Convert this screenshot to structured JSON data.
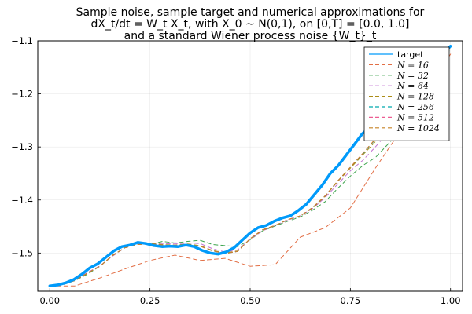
{
  "chart_data": {
    "type": "line",
    "title_lines": [
      "Sample noise, sample target and numerical approximations for",
      "dX_t/dt = W_t X_t, with X_0 ~ N(0,1), on [0,T] = [0.0, 1.0]",
      "and a standard Wiener process noise {W_t}_t"
    ],
    "xlabel": "",
    "ylabel": "",
    "xlim": [
      -0.03,
      1.03
    ],
    "ylim": [
      -1.572,
      -1.1
    ],
    "x_ticks": [
      0.0,
      0.25,
      0.5,
      0.75,
      1.0
    ],
    "x_tick_labels": [
      "0.00",
      "0.25",
      "0.50",
      "0.75",
      "1.00"
    ],
    "y_ticks": [
      -1.5,
      -1.4,
      -1.3,
      -1.2,
      -1.1
    ],
    "y_tick_labels": [
      "−1.5",
      "−1.4",
      "−1.3",
      "−1.2",
      "−1.1"
    ],
    "grid": true,
    "legend_position": "top-right",
    "series": [
      {
        "name": "target",
        "color": "#009AFA",
        "style": "solid",
        "x": [
          0.0,
          0.02,
          0.04,
          0.06,
          0.08,
          0.1,
          0.12,
          0.14,
          0.16,
          0.18,
          0.2,
          0.22,
          0.24,
          0.26,
          0.28,
          0.3,
          0.32,
          0.34,
          0.36,
          0.38,
          0.4,
          0.42,
          0.44,
          0.46,
          0.48,
          0.5,
          0.52,
          0.54,
          0.56,
          0.58,
          0.6,
          0.62,
          0.64,
          0.66,
          0.68,
          0.7,
          0.72,
          0.74,
          0.76,
          0.78,
          0.8,
          0.82,
          0.84,
          0.86,
          0.88,
          0.9,
          0.92,
          0.94,
          0.96,
          0.98,
          1.0
        ],
        "y": [
          -1.562,
          -1.56,
          -1.556,
          -1.55,
          -1.54,
          -1.528,
          -1.52,
          -1.508,
          -1.496,
          -1.488,
          -1.485,
          -1.48,
          -1.482,
          -1.486,
          -1.488,
          -1.487,
          -1.488,
          -1.485,
          -1.488,
          -1.495,
          -1.5,
          -1.502,
          -1.498,
          -1.49,
          -1.476,
          -1.462,
          -1.452,
          -1.448,
          -1.44,
          -1.434,
          -1.43,
          -1.42,
          -1.408,
          -1.39,
          -1.372,
          -1.35,
          -1.335,
          -1.315,
          -1.295,
          -1.275,
          -1.262,
          -1.245,
          -1.228,
          -1.212,
          -1.198,
          -1.185,
          -1.17,
          -1.155,
          -1.14,
          -1.125,
          -1.11
        ]
      },
      {
        "name": "N = 16",
        "color": "#E26F46",
        "style": "dashed",
        "x": [
          0.0,
          0.0625,
          0.125,
          0.1875,
          0.25,
          0.3125,
          0.375,
          0.4375,
          0.5,
          0.5625,
          0.625,
          0.6875,
          0.75,
          0.8125,
          0.875,
          0.9375,
          1.0
        ],
        "y": [
          -1.562,
          -1.562,
          -1.547,
          -1.53,
          -1.514,
          -1.504,
          -1.514,
          -1.51,
          -1.525,
          -1.522,
          -1.47,
          -1.452,
          -1.415,
          -1.34,
          -1.27,
          -1.2,
          -1.125
        ]
      },
      {
        "name": "N = 32",
        "color": "#3DA44D",
        "style": "dashed",
        "x": [
          0.0,
          0.03125,
          0.0625,
          0.09375,
          0.125,
          0.15625,
          0.1875,
          0.21875,
          0.25,
          0.28125,
          0.3125,
          0.34375,
          0.375,
          0.40625,
          0.4375,
          0.46875,
          0.5,
          0.53125,
          0.5625,
          0.59375,
          0.625,
          0.65625,
          0.6875,
          0.71875,
          0.75,
          0.78125,
          0.8125,
          0.84375,
          0.875,
          0.90625,
          0.9375,
          0.96875,
          1.0
        ],
        "y": [
          -1.562,
          -1.56,
          -1.552,
          -1.54,
          -1.525,
          -1.505,
          -1.49,
          -1.482,
          -1.484,
          -1.478,
          -1.481,
          -1.478,
          -1.476,
          -1.484,
          -1.486,
          -1.488,
          -1.475,
          -1.458,
          -1.449,
          -1.44,
          -1.432,
          -1.419,
          -1.403,
          -1.378,
          -1.355,
          -1.335,
          -1.32,
          -1.295,
          -1.27,
          -1.242,
          -1.215,
          -1.18,
          -1.11
        ]
      },
      {
        "name": "N = 64",
        "color": "#C271D2",
        "style": "dashed",
        "x": [
          0.0,
          0.03125,
          0.0625,
          0.09375,
          0.125,
          0.15625,
          0.1875,
          0.21875,
          0.25,
          0.28125,
          0.3125,
          0.34375,
          0.375,
          0.40625,
          0.4375,
          0.46875,
          0.5,
          0.53125,
          0.5625,
          0.59375,
          0.625,
          0.65625,
          0.6875,
          0.71875,
          0.75,
          0.78125,
          0.8125,
          0.84375,
          0.875,
          0.90625,
          0.9375,
          0.96875,
          1.0
        ],
        "y": [
          -1.562,
          -1.558,
          -1.551,
          -1.537,
          -1.524,
          -1.506,
          -1.49,
          -1.483,
          -1.481,
          -1.482,
          -1.483,
          -1.481,
          -1.482,
          -1.492,
          -1.498,
          -1.494,
          -1.474,
          -1.458,
          -1.448,
          -1.438,
          -1.43,
          -1.416,
          -1.395,
          -1.37,
          -1.345,
          -1.325,
          -1.3,
          -1.273,
          -1.245,
          -1.212,
          -1.185,
          -1.155,
          -1.11
        ]
      },
      {
        "name": "N = 128",
        "color": "#AC8D18",
        "style": "dashed",
        "x": [
          0.0,
          0.03125,
          0.0625,
          0.09375,
          0.125,
          0.15625,
          0.1875,
          0.21875,
          0.25,
          0.28125,
          0.3125,
          0.34375,
          0.375,
          0.40625,
          0.4375,
          0.46875,
          0.5,
          0.53125,
          0.5625,
          0.59375,
          0.625,
          0.65625,
          0.6875,
          0.71875,
          0.75,
          0.78125,
          0.8125,
          0.84375,
          0.875,
          0.90625,
          0.9375,
          0.96875,
          1.0
        ],
        "y": [
          -1.562,
          -1.559,
          -1.552,
          -1.538,
          -1.525,
          -1.504,
          -1.49,
          -1.484,
          -1.482,
          -1.484,
          -1.485,
          -1.483,
          -1.486,
          -1.495,
          -1.5,
          -1.496,
          -1.473,
          -1.457,
          -1.448,
          -1.437,
          -1.43,
          -1.415,
          -1.393,
          -1.365,
          -1.34,
          -1.315,
          -1.29,
          -1.262,
          -1.235,
          -1.205,
          -1.178,
          -1.148,
          -1.11
        ]
      },
      {
        "name": "N = 256",
        "color": "#00A9AD",
        "style": "dashed",
        "x": [
          0.0,
          0.03125,
          0.0625,
          0.09375,
          0.125,
          0.15625,
          0.1875,
          0.21875,
          0.25,
          0.28125,
          0.3125,
          0.34375,
          0.375,
          0.40625,
          0.4375,
          0.46875,
          0.5,
          0.53125,
          0.5625,
          0.59375,
          0.625,
          0.65625,
          0.6875,
          0.71875,
          0.75,
          0.78125,
          0.8125,
          0.84375,
          0.875,
          0.90625,
          0.9375,
          0.96875,
          1.0
        ],
        "y": [
          -1.562,
          -1.559,
          -1.552,
          -1.538,
          -1.525,
          -1.505,
          -1.49,
          -1.484,
          -1.483,
          -1.485,
          -1.486,
          -1.484,
          -1.487,
          -1.496,
          -1.501,
          -1.497,
          -1.473,
          -1.456,
          -1.448,
          -1.437,
          -1.43,
          -1.414,
          -1.392,
          -1.364,
          -1.338,
          -1.313,
          -1.286,
          -1.258,
          -1.232,
          -1.203,
          -1.176,
          -1.146,
          -1.11
        ]
      },
      {
        "name": "N = 512",
        "color": "#ED5D92",
        "style": "dashed",
        "x": [
          0.0,
          0.03125,
          0.0625,
          0.09375,
          0.125,
          0.15625,
          0.1875,
          0.21875,
          0.25,
          0.28125,
          0.3125,
          0.34375,
          0.375,
          0.40625,
          0.4375,
          0.46875,
          0.5,
          0.53125,
          0.5625,
          0.59375,
          0.625,
          0.65625,
          0.6875,
          0.71875,
          0.75,
          0.78125,
          0.8125,
          0.84375,
          0.875,
          0.90625,
          0.9375,
          0.96875,
          1.0
        ],
        "y": [
          -1.562,
          -1.559,
          -1.552,
          -1.538,
          -1.525,
          -1.505,
          -1.49,
          -1.484,
          -1.483,
          -1.485,
          -1.486,
          -1.485,
          -1.487,
          -1.496,
          -1.501,
          -1.497,
          -1.473,
          -1.456,
          -1.448,
          -1.437,
          -1.43,
          -1.414,
          -1.392,
          -1.364,
          -1.338,
          -1.312,
          -1.285,
          -1.257,
          -1.231,
          -1.202,
          -1.175,
          -1.145,
          -1.11
        ]
      },
      {
        "name": "N = 1024",
        "color": "#C68225",
        "style": "dashed",
        "x": [
          0.0,
          0.03125,
          0.0625,
          0.09375,
          0.125,
          0.15625,
          0.1875,
          0.21875,
          0.25,
          0.28125,
          0.3125,
          0.34375,
          0.375,
          0.40625,
          0.4375,
          0.46875,
          0.5,
          0.53125,
          0.5625,
          0.59375,
          0.625,
          0.65625,
          0.6875,
          0.71875,
          0.75,
          0.78125,
          0.8125,
          0.84375,
          0.875,
          0.90625,
          0.9375,
          0.96875,
          1.0
        ],
        "y": [
          -1.562,
          -1.559,
          -1.552,
          -1.538,
          -1.525,
          -1.505,
          -1.49,
          -1.484,
          -1.483,
          -1.485,
          -1.486,
          -1.485,
          -1.487,
          -1.496,
          -1.501,
          -1.497,
          -1.473,
          -1.456,
          -1.448,
          -1.437,
          -1.43,
          -1.414,
          -1.392,
          -1.364,
          -1.338,
          -1.312,
          -1.285,
          -1.257,
          -1.231,
          -1.202,
          -1.175,
          -1.145,
          -1.11
        ]
      }
    ]
  }
}
